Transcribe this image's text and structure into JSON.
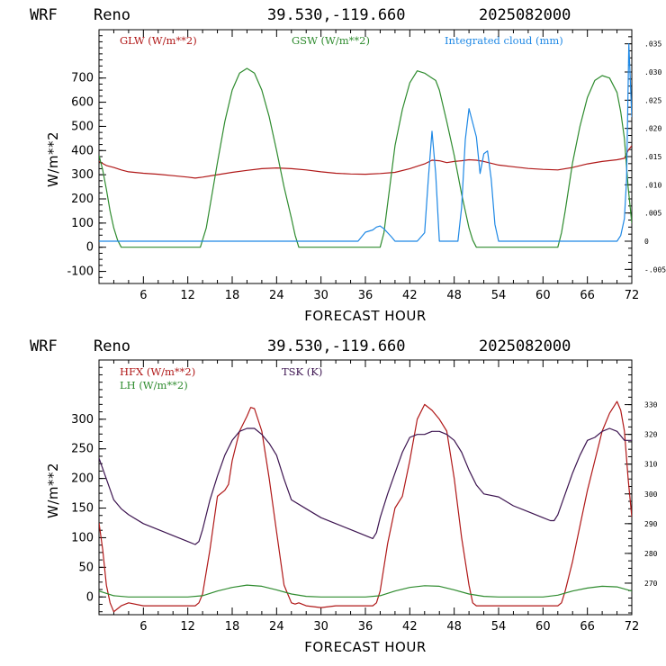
{
  "colors": {
    "red": "#b01818",
    "green": "#2e8b2e",
    "blue": "#1e88e5",
    "purple": "#3c1450"
  },
  "chart_data": [
    {
      "type": "line",
      "header": {
        "model": "WRF",
        "location": "Reno",
        "coords": "39.530,-119.660",
        "run": "2025082000"
      },
      "xlabel": "FORECAST HOUR",
      "ylabel": "W/m**2",
      "xlim": [
        0,
        72
      ],
      "ylim": [
        -150,
        900
      ],
      "xticks": [
        "6",
        "12",
        "18",
        "24",
        "30",
        "36",
        "42",
        "48",
        "54",
        "60",
        "66",
        "72"
      ],
      "yticks": [
        "-100",
        "0",
        "100",
        "200",
        "300",
        "400",
        "500",
        "600",
        "700"
      ],
      "y2lim": [
        -0.0075,
        0.0375
      ],
      "y2ticks": [
        ".035",
        ".030",
        ".025",
        ".020",
        ".015",
        ".010",
        ".005",
        "0",
        "-.005"
      ],
      "legend": [
        "GLW (W/m**2)",
        "GSW (W/m**2)",
        "Integrated cloud (mm)"
      ],
      "series": [
        {
          "name": "GLW (W/m**2)",
          "color": "red",
          "axis": "left",
          "x": [
            0,
            1,
            2,
            3,
            4,
            6,
            8,
            10,
            12,
            13,
            14,
            16,
            18,
            20,
            22,
            24,
            26,
            28,
            30,
            32,
            34,
            36,
            38,
            40,
            42,
            43,
            44,
            45,
            46,
            47,
            48,
            49,
            50,
            51,
            52,
            54,
            56,
            58,
            60,
            62,
            64,
            66,
            68,
            70,
            71,
            71.5,
            72
          ],
          "y": [
            355,
            338,
            330,
            320,
            312,
            306,
            302,
            296,
            290,
            286,
            290,
            300,
            310,
            318,
            325,
            328,
            325,
            320,
            312,
            306,
            303,
            302,
            305,
            310,
            325,
            335,
            345,
            360,
            358,
            350,
            355,
            358,
            362,
            360,
            355,
            340,
            333,
            326,
            322,
            320,
            330,
            345,
            355,
            362,
            368,
            400,
            420
          ]
        },
        {
          "name": "GSW (W/m**2)",
          "color": "green",
          "axis": "left",
          "x": [
            0,
            0.5,
            1,
            1.5,
            2,
            2.5,
            3,
            13.7,
            14.5,
            16,
            17,
            18,
            19,
            20,
            21,
            22,
            23,
            24,
            25,
            26,
            26.5,
            27,
            38,
            38.5,
            39,
            40,
            41,
            42,
            43,
            44,
            45,
            45.5,
            46,
            47,
            48,
            49,
            50,
            50.5,
            51,
            62,
            62.5,
            63,
            64,
            65,
            66,
            67,
            68,
            69,
            70,
            70.5,
            71,
            71.5,
            72
          ],
          "y": [
            380,
            320,
            240,
            150,
            80,
            30,
            0,
            0,
            80,
            350,
            520,
            650,
            720,
            740,
            720,
            650,
            540,
            400,
            250,
            120,
            50,
            0,
            0,
            60,
            180,
            420,
            570,
            680,
            730,
            720,
            700,
            690,
            650,
            520,
            380,
            220,
            80,
            30,
            0,
            0,
            60,
            150,
            350,
            500,
            620,
            690,
            710,
            700,
            640,
            560,
            450,
            250,
            100
          ]
        },
        {
          "name": "Integrated cloud (mm)",
          "color": "blue",
          "axis": "right",
          "x": [
            0,
            35,
            35.5,
            36,
            37,
            37.5,
            38,
            38.5,
            39,
            39.5,
            40,
            41,
            42,
            43,
            44,
            44.5,
            45,
            45.5,
            46,
            46.5,
            47,
            48,
            48.5,
            49,
            49.5,
            50,
            51,
            51.5,
            52,
            52.5,
            53,
            53.5,
            54,
            55,
            70,
            70.5,
            71,
            71.3,
            71.6,
            72
          ],
          "y": [
            0,
            0,
            0.0008,
            0.0016,
            0.002,
            0.0025,
            0.0027,
            0.0022,
            0.0015,
            0.0008,
            0,
            0,
            0,
            0,
            0.0015,
            0.011,
            0.0195,
            0.012,
            0,
            0,
            0,
            0,
            0,
            0.006,
            0.018,
            0.0235,
            0.0185,
            0.012,
            0.0155,
            0.016,
            0.011,
            0.003,
            0,
            0,
            0,
            0.001,
            0.004,
            0.011,
            0.035,
            0.022
          ]
        }
      ]
    },
    {
      "type": "line",
      "header": {
        "model": "WRF",
        "location": "Reno",
        "coords": "39.530,-119.660",
        "run": "2025082000"
      },
      "xlabel": "FORECAST HOUR",
      "ylabel": "W/m**2",
      "xlim": [
        0,
        72
      ],
      "ylim": [
        -30,
        400
      ],
      "xticks": [
        "6",
        "12",
        "18",
        "24",
        "30",
        "36",
        "42",
        "48",
        "54",
        "60",
        "66",
        "72"
      ],
      "yticks": [
        "0",
        "50",
        "100",
        "150",
        "200",
        "250",
        "300"
      ],
      "y2lim": [
        259.4,
        345
      ],
      "y2ticks": [
        "330",
        "320",
        "310",
        "300",
        "290",
        "280",
        "270"
      ],
      "legend": [
        "HFX (W/m**2)",
        "LH  (W/m**2)",
        "TSK (K)"
      ],
      "series": [
        {
          "name": "HFX (W/m**2)",
          "color": "red",
          "axis": "left",
          "x": [
            0,
            0.5,
            1,
            1.5,
            2,
            2.5,
            3,
            4,
            6,
            8,
            10,
            12,
            13,
            13.5,
            14,
            15,
            16,
            17,
            17.5,
            18,
            19,
            20,
            20.5,
            21,
            22,
            23,
            24,
            25,
            26,
            26.5,
            27,
            28,
            30,
            32,
            34,
            36,
            37,
            37.5,
            38,
            39,
            40,
            41,
            42,
            43,
            44,
            45,
            46,
            47,
            48,
            49,
            50,
            50.5,
            51,
            52,
            54,
            56,
            58,
            60,
            62,
            62.5,
            63,
            64,
            65,
            66,
            67,
            68,
            69,
            70,
            70.5,
            71,
            71.5,
            72
          ],
          "y": [
            125,
            80,
            20,
            -10,
            -25,
            -20,
            -15,
            -10,
            -15,
            -15,
            -15,
            -15,
            -15,
            -10,
            5,
            80,
            170,
            180,
            190,
            230,
            280,
            305,
            320,
            318,
            280,
            200,
            110,
            20,
            -10,
            -12,
            -10,
            -15,
            -18,
            -15,
            -15,
            -15,
            -15,
            -10,
            10,
            90,
            150,
            170,
            230,
            300,
            325,
            315,
            300,
            280,
            200,
            100,
            20,
            -10,
            -15,
            -15,
            -15,
            -15,
            -15,
            -15,
            -15,
            -10,
            10,
            60,
            120,
            180,
            230,
            280,
            310,
            330,
            315,
            280,
            200,
            135
          ]
        },
        {
          "name": "LH  (W/m**2)",
          "color": "green",
          "axis": "left",
          "x": [
            0,
            1,
            2,
            4,
            6,
            8,
            10,
            12,
            14,
            16,
            18,
            20,
            22,
            24,
            26,
            28,
            30,
            32,
            34,
            36,
            38,
            40,
            42,
            44,
            46,
            48,
            50,
            52,
            54,
            56,
            58,
            60,
            62,
            64,
            66,
            68,
            70,
            72
          ],
          "y": [
            10,
            6,
            2,
            0,
            0,
            0,
            0,
            0,
            2,
            10,
            16,
            20,
            18,
            12,
            5,
            1,
            0,
            0,
            0,
            0,
            2,
            10,
            16,
            19,
            18,
            12,
            5,
            1,
            0,
            0,
            0,
            0,
            3,
            10,
            15,
            18,
            17,
            10
          ]
        },
        {
          "name": "TSK (K)",
          "color": "purple",
          "axis": "right",
          "x": [
            0,
            1,
            2,
            3,
            4,
            6,
            8,
            10,
            12,
            13,
            13.5,
            14,
            15,
            16,
            17,
            18,
            19,
            20,
            21,
            22,
            23,
            24,
            25,
            26,
            28,
            30,
            32,
            34,
            36,
            37,
            37.5,
            38,
            39,
            40,
            41,
            42,
            43,
            44,
            45,
            46,
            47,
            48,
            49,
            50,
            51,
            52,
            54,
            56,
            58,
            60,
            61,
            61.5,
            62,
            63,
            64,
            65,
            66,
            67,
            68,
            69,
            70,
            71,
            72
          ],
          "y": [
            312,
            305,
            298,
            295,
            293,
            290,
            288,
            286,
            284,
            283,
            284,
            288,
            298,
            306,
            313,
            318,
            321,
            322,
            322,
            320,
            317,
            313,
            305,
            298,
            295,
            292,
            290,
            288,
            286,
            285,
            287,
            292,
            300,
            307,
            314,
            319,
            320,
            320,
            321,
            321,
            320,
            318,
            314,
            308,
            303,
            300,
            299,
            296,
            294,
            292,
            291,
            291,
            293,
            300,
            307,
            313,
            318,
            319,
            321,
            322,
            321,
            318,
            318
          ]
        }
      ]
    }
  ]
}
